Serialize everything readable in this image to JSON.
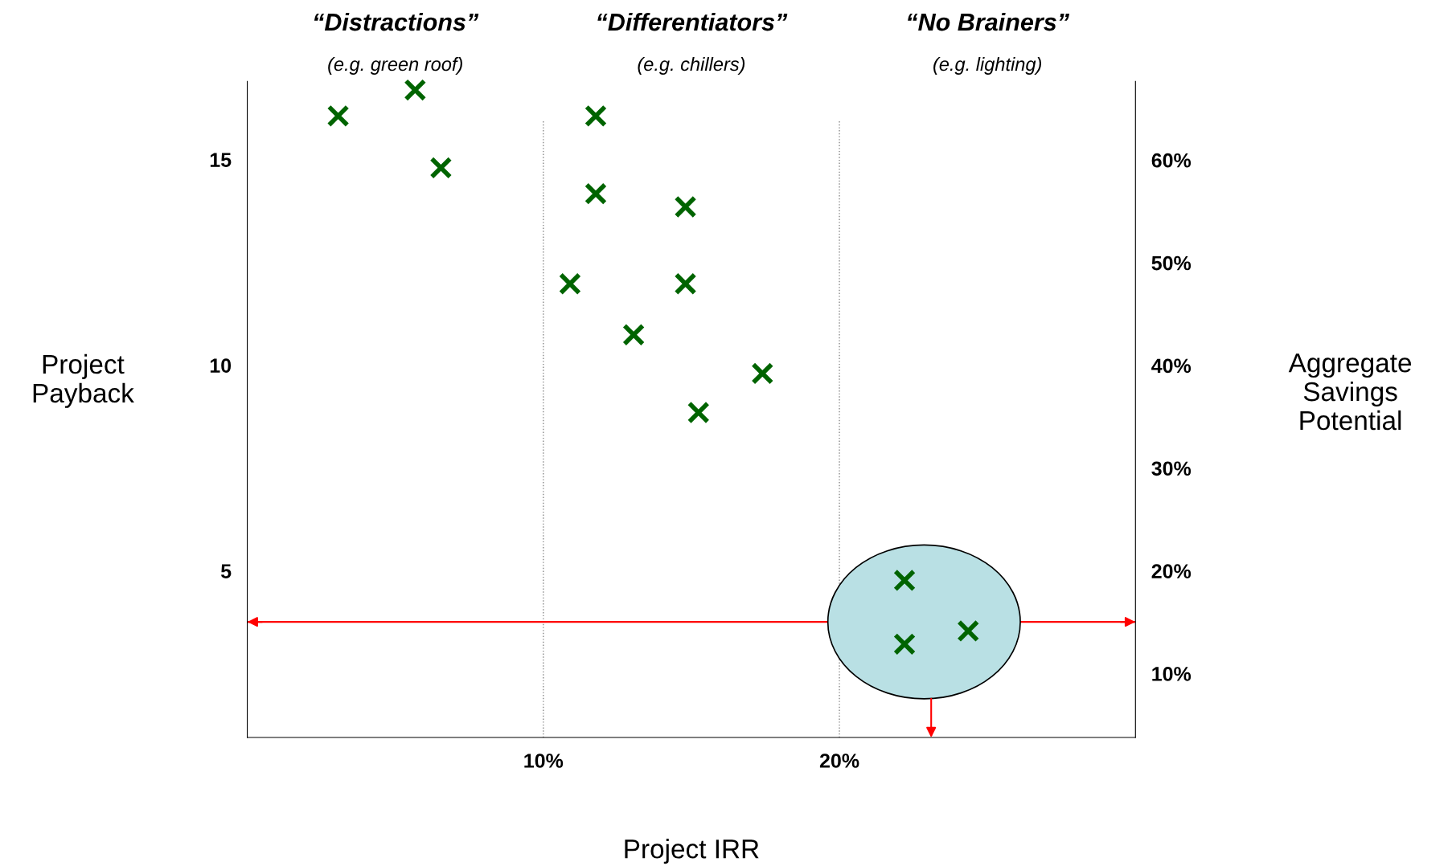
{
  "chart_data": {
    "type": "scatter",
    "xlabel": "Project IRR",
    "ylabel": "Project\nPayback",
    "y2label": "Aggregate\nSavings\nPotential",
    "annotations": [
      "“Distractions”",
      "(e.g. green roof)",
      "“Differentiators”",
      "(e.g. chillers)",
      "“No Brainers”",
      "(e.g. lighting)"
    ],
    "series": [
      {
        "color": "#006400",
        "x": [
          3.07,
          5.67,
          6.54,
          11.77,
          11.77,
          14.8,
          10.9,
          14.8,
          13.05,
          17.4,
          15.24,
          22.2,
          22.2,
          24.35
        ],
        "values": [
          16.06,
          16.69,
          14.8,
          16.06,
          14.17,
          13.85,
          11.98,
          11.98,
          10.74,
          9.8,
          8.85,
          4.77,
          3.22,
          3.54
        ]
      }
    ],
    "marker": "cross",
    "grid": "x",
    "xlim": [
      0,
      30
    ],
    "xticks": [
      {
        "value": 10,
        "label": "10%"
      },
      {
        "value": 20,
        "label": "20%"
      }
    ],
    "ylim": [
      0.95,
      16.9
    ],
    "yticks": [
      5,
      10,
      15
    ],
    "y2lim": [
      3.78,
      67.66
    ],
    "y2ticks": [
      {
        "value": 10,
        "label": "10%"
      },
      {
        "value": 20,
        "label": "20%"
      },
      {
        "value": 30,
        "label": "30%"
      },
      {
        "value": 40,
        "label": "40%"
      },
      {
        "value": 50,
        "label": "50%"
      },
      {
        "value": 60,
        "label": "60%"
      }
    ],
    "ref_lines": [
      {
        "axis": "y",
        "value": 3.76,
        "color": "#ff0000"
      }
    ]
  }
}
